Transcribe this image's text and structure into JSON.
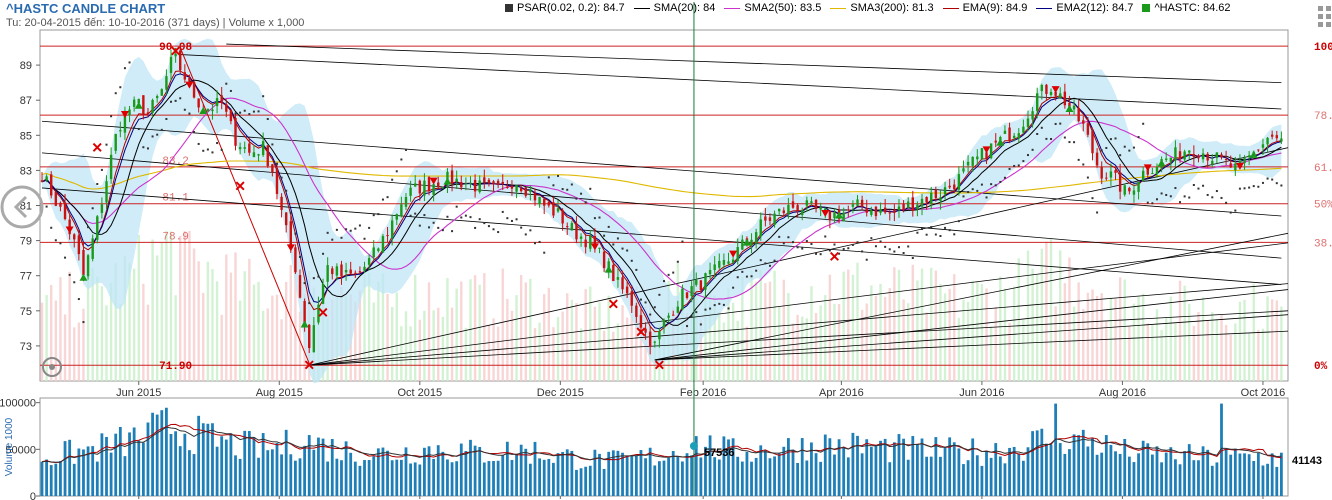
{
  "chart_data": {
    "type": "candlestick",
    "title": "^HASTC CANDLE CHART",
    "subtitle": "Tu: 20-04-2015 đến: 10-10-2016 (371 days) | Volume x 1,000",
    "legend": [
      {
        "label": "PSAR(0.02, 0.2): 84.7",
        "color": "#333333",
        "style": "box"
      },
      {
        "label": "SMA(20): 84",
        "color": "#000000",
        "style": "line"
      },
      {
        "label": "SMA2(50): 83.5",
        "color": "#cc33cc",
        "style": "line"
      },
      {
        "label": "SMA3(200): 81.3",
        "color": "#e0b800",
        "style": "line"
      },
      {
        "label": "EMA(9): 84.9",
        "color": "#b00000",
        "style": "line"
      },
      {
        "label": "EMA2(12): 84.7",
        "color": "#000080",
        "style": "line"
      },
      {
        "label": "^HASTC: 84.62",
        "color": "#1a9a1a",
        "style": "box"
      }
    ],
    "x_ticks": [
      "Jun 2015",
      "Aug 2015",
      "Oct 2015",
      "Dec 2015",
      "Feb 2016",
      "Apr 2016",
      "Jun 2016",
      "Aug 2016",
      "Oct 2016"
    ],
    "x_tick_days": [
      42,
      103,
      164,
      225,
      287,
      347,
      408,
      469,
      530
    ],
    "total_days": 540,
    "ylim": [
      71,
      91
    ],
    "y_ticks": [
      "73",
      "75",
      "77",
      "79",
      "81",
      "83",
      "85",
      "87",
      "89"
    ],
    "y_tick_values": [
      73,
      75,
      77,
      79,
      81,
      83,
      85,
      87,
      89
    ],
    "fib_levels": [
      {
        "value": 90.08,
        "right": "100%",
        "left": ""
      },
      {
        "value": 86.15,
        "right": "78.6%",
        "left": ""
      },
      {
        "value": 83.2,
        "right": "61.8%",
        "left": "83.2"
      },
      {
        "value": 81.1,
        "right": "50%",
        "left": "81.1"
      },
      {
        "value": 78.9,
        "right": "38.2%",
        "left": "78.9"
      },
      {
        "value": 71.9,
        "right": "0%",
        "left": ""
      }
    ],
    "price_labels": [
      {
        "text": "90.08",
        "day": 58,
        "value": 90.08
      },
      {
        "text": "71.90",
        "day": 58,
        "value": 71.9
      }
    ],
    "price_anchors": [
      [
        0,
        82.8
      ],
      [
        5,
        81.5
      ],
      [
        10,
        80.2
      ],
      [
        15,
        78.5
      ],
      [
        18,
        77.0
      ],
      [
        23,
        79.5
      ],
      [
        28,
        82.5
      ],
      [
        33,
        85.5
      ],
      [
        38,
        86.5
      ],
      [
        42,
        86.8
      ],
      [
        46,
        86.2
      ],
      [
        52,
        87.5
      ],
      [
        57,
        89.5
      ],
      [
        61,
        88.6
      ],
      [
        65,
        87.5
      ],
      [
        70,
        86.5
      ],
      [
        78,
        86.8
      ],
      [
        84,
        84.8
      ],
      [
        90,
        84.0
      ],
      [
        96,
        84.3
      ],
      [
        100,
        83.0
      ],
      [
        105,
        80.0
      ],
      [
        110,
        77.5
      ],
      [
        113,
        75.0
      ],
      [
        116,
        73.0
      ],
      [
        120,
        75.5
      ],
      [
        124,
        77.5
      ],
      [
        130,
        77.0
      ],
      [
        137,
        77.0
      ],
      [
        143,
        78.0
      ],
      [
        150,
        79.5
      ],
      [
        157,
        81.5
      ],
      [
        163,
        82.0
      ],
      [
        170,
        82.3
      ],
      [
        177,
        82.5
      ],
      [
        184,
        82.3
      ],
      [
        191,
        82.0
      ],
      [
        198,
        81.8
      ],
      [
        205,
        82.5
      ],
      [
        212,
        81.8
      ],
      [
        218,
        81.0
      ],
      [
        224,
        80.5
      ],
      [
        231,
        79.5
      ],
      [
        238,
        78.9
      ],
      [
        245,
        77.7
      ],
      [
        250,
        76.5
      ],
      [
        256,
        75.5
      ],
      [
        262,
        73.7
      ],
      [
        266,
        73.0
      ],
      [
        270,
        74.3
      ],
      [
        277,
        75.8
      ],
      [
        285,
        76.5
      ],
      [
        292,
        77.2
      ],
      [
        299,
        78.0
      ],
      [
        306,
        79.0
      ],
      [
        313,
        80.0
      ],
      [
        320,
        80.6
      ],
      [
        327,
        81.0
      ],
      [
        334,
        80.8
      ],
      [
        341,
        80.4
      ],
      [
        348,
        80.6
      ],
      [
        355,
        81.0
      ],
      [
        362,
        80.7
      ],
      [
        369,
        80.5
      ],
      [
        376,
        81.0
      ],
      [
        383,
        81.4
      ],
      [
        390,
        81.7
      ],
      [
        397,
        82.4
      ],
      [
        404,
        83.4
      ],
      [
        411,
        84.2
      ],
      [
        418,
        84.9
      ],
      [
        425,
        85.6
      ],
      [
        432,
        87.3
      ],
      [
        438,
        87.8
      ],
      [
        445,
        86.8
      ],
      [
        452,
        85.5
      ],
      [
        459,
        83.0
      ],
      [
        465,
        82.6
      ],
      [
        471,
        81.6
      ],
      [
        477,
        82.8
      ],
      [
        484,
        83.4
      ],
      [
        491,
        83.8
      ],
      [
        498,
        84.3
      ],
      [
        505,
        84.0
      ],
      [
        512,
        83.5
      ],
      [
        519,
        83.0
      ],
      [
        526,
        84.0
      ],
      [
        533,
        85.0
      ],
      [
        538,
        84.62
      ]
    ],
    "volume": {
      "ylabel": "Volume 1000",
      "ylim": [
        0,
        105000
      ],
      "y_ticks": [
        "100000",
        "50000",
        "0"
      ],
      "y_tick_values": [
        100000,
        50000,
        0
      ],
      "cursor_value": "57536",
      "cursor_day": 283,
      "last_value": "41143",
      "anchors": [
        [
          0,
          42000
        ],
        [
          20,
          50000
        ],
        [
          40,
          62000
        ],
        [
          55,
          78000
        ],
        [
          70,
          65000
        ],
        [
          85,
          55000
        ],
        [
          100,
          52000
        ],
        [
          115,
          60000
        ],
        [
          130,
          50000
        ],
        [
          150,
          46000
        ],
        [
          170,
          52000
        ],
        [
          190,
          47000
        ],
        [
          210,
          50000
        ],
        [
          230,
          42000
        ],
        [
          250,
          38000
        ],
        [
          270,
          45000
        ],
        [
          283,
          57536
        ],
        [
          300,
          48000
        ],
        [
          320,
          52000
        ],
        [
          340,
          56000
        ],
        [
          360,
          54000
        ],
        [
          380,
          50000
        ],
        [
          400,
          48000
        ],
        [
          420,
          52000
        ],
        [
          440,
          65000
        ],
        [
          455,
          60000
        ],
        [
          470,
          48000
        ],
        [
          490,
          44000
        ],
        [
          510,
          42000
        ],
        [
          530,
          43000
        ],
        [
          538,
          41143
        ]
      ]
    }
  }
}
